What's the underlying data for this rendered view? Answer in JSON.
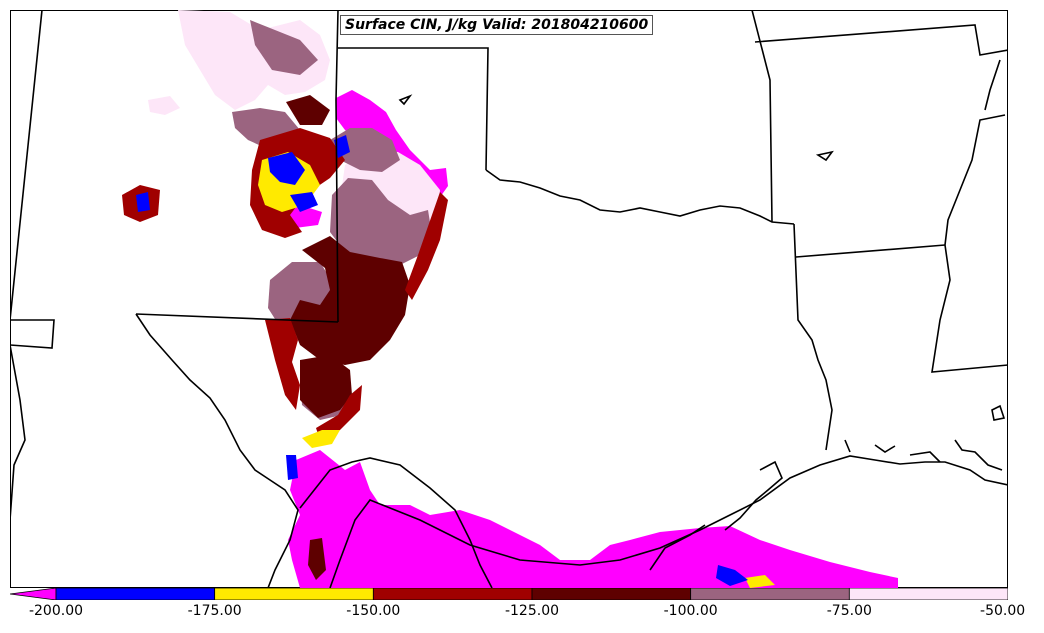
{
  "map": {
    "title": "Surface CIN, J/kg Valid: 201804210600"
  },
  "colorbar": {
    "extend": "min",
    "bins": [
      {
        "from": -200,
        "to": -175,
        "color": "#0000ff"
      },
      {
        "from": -175,
        "to": -150,
        "color": "#ffea00"
      },
      {
        "from": -150,
        "to": -125,
        "color": "#a00000"
      },
      {
        "from": -125,
        "to": -100,
        "color": "#5e0000"
      },
      {
        "from": -100,
        "to": -75,
        "color": "#9b6480"
      },
      {
        "from": -75,
        "to": -50,
        "color": "#fde6f8"
      }
    ],
    "under_color": "#ff00ff",
    "tick_labels": [
      "-200.00",
      "-175.00",
      "-150.00",
      "-125.00",
      "-100.00",
      "-75.00",
      "-50.00"
    ]
  }
}
